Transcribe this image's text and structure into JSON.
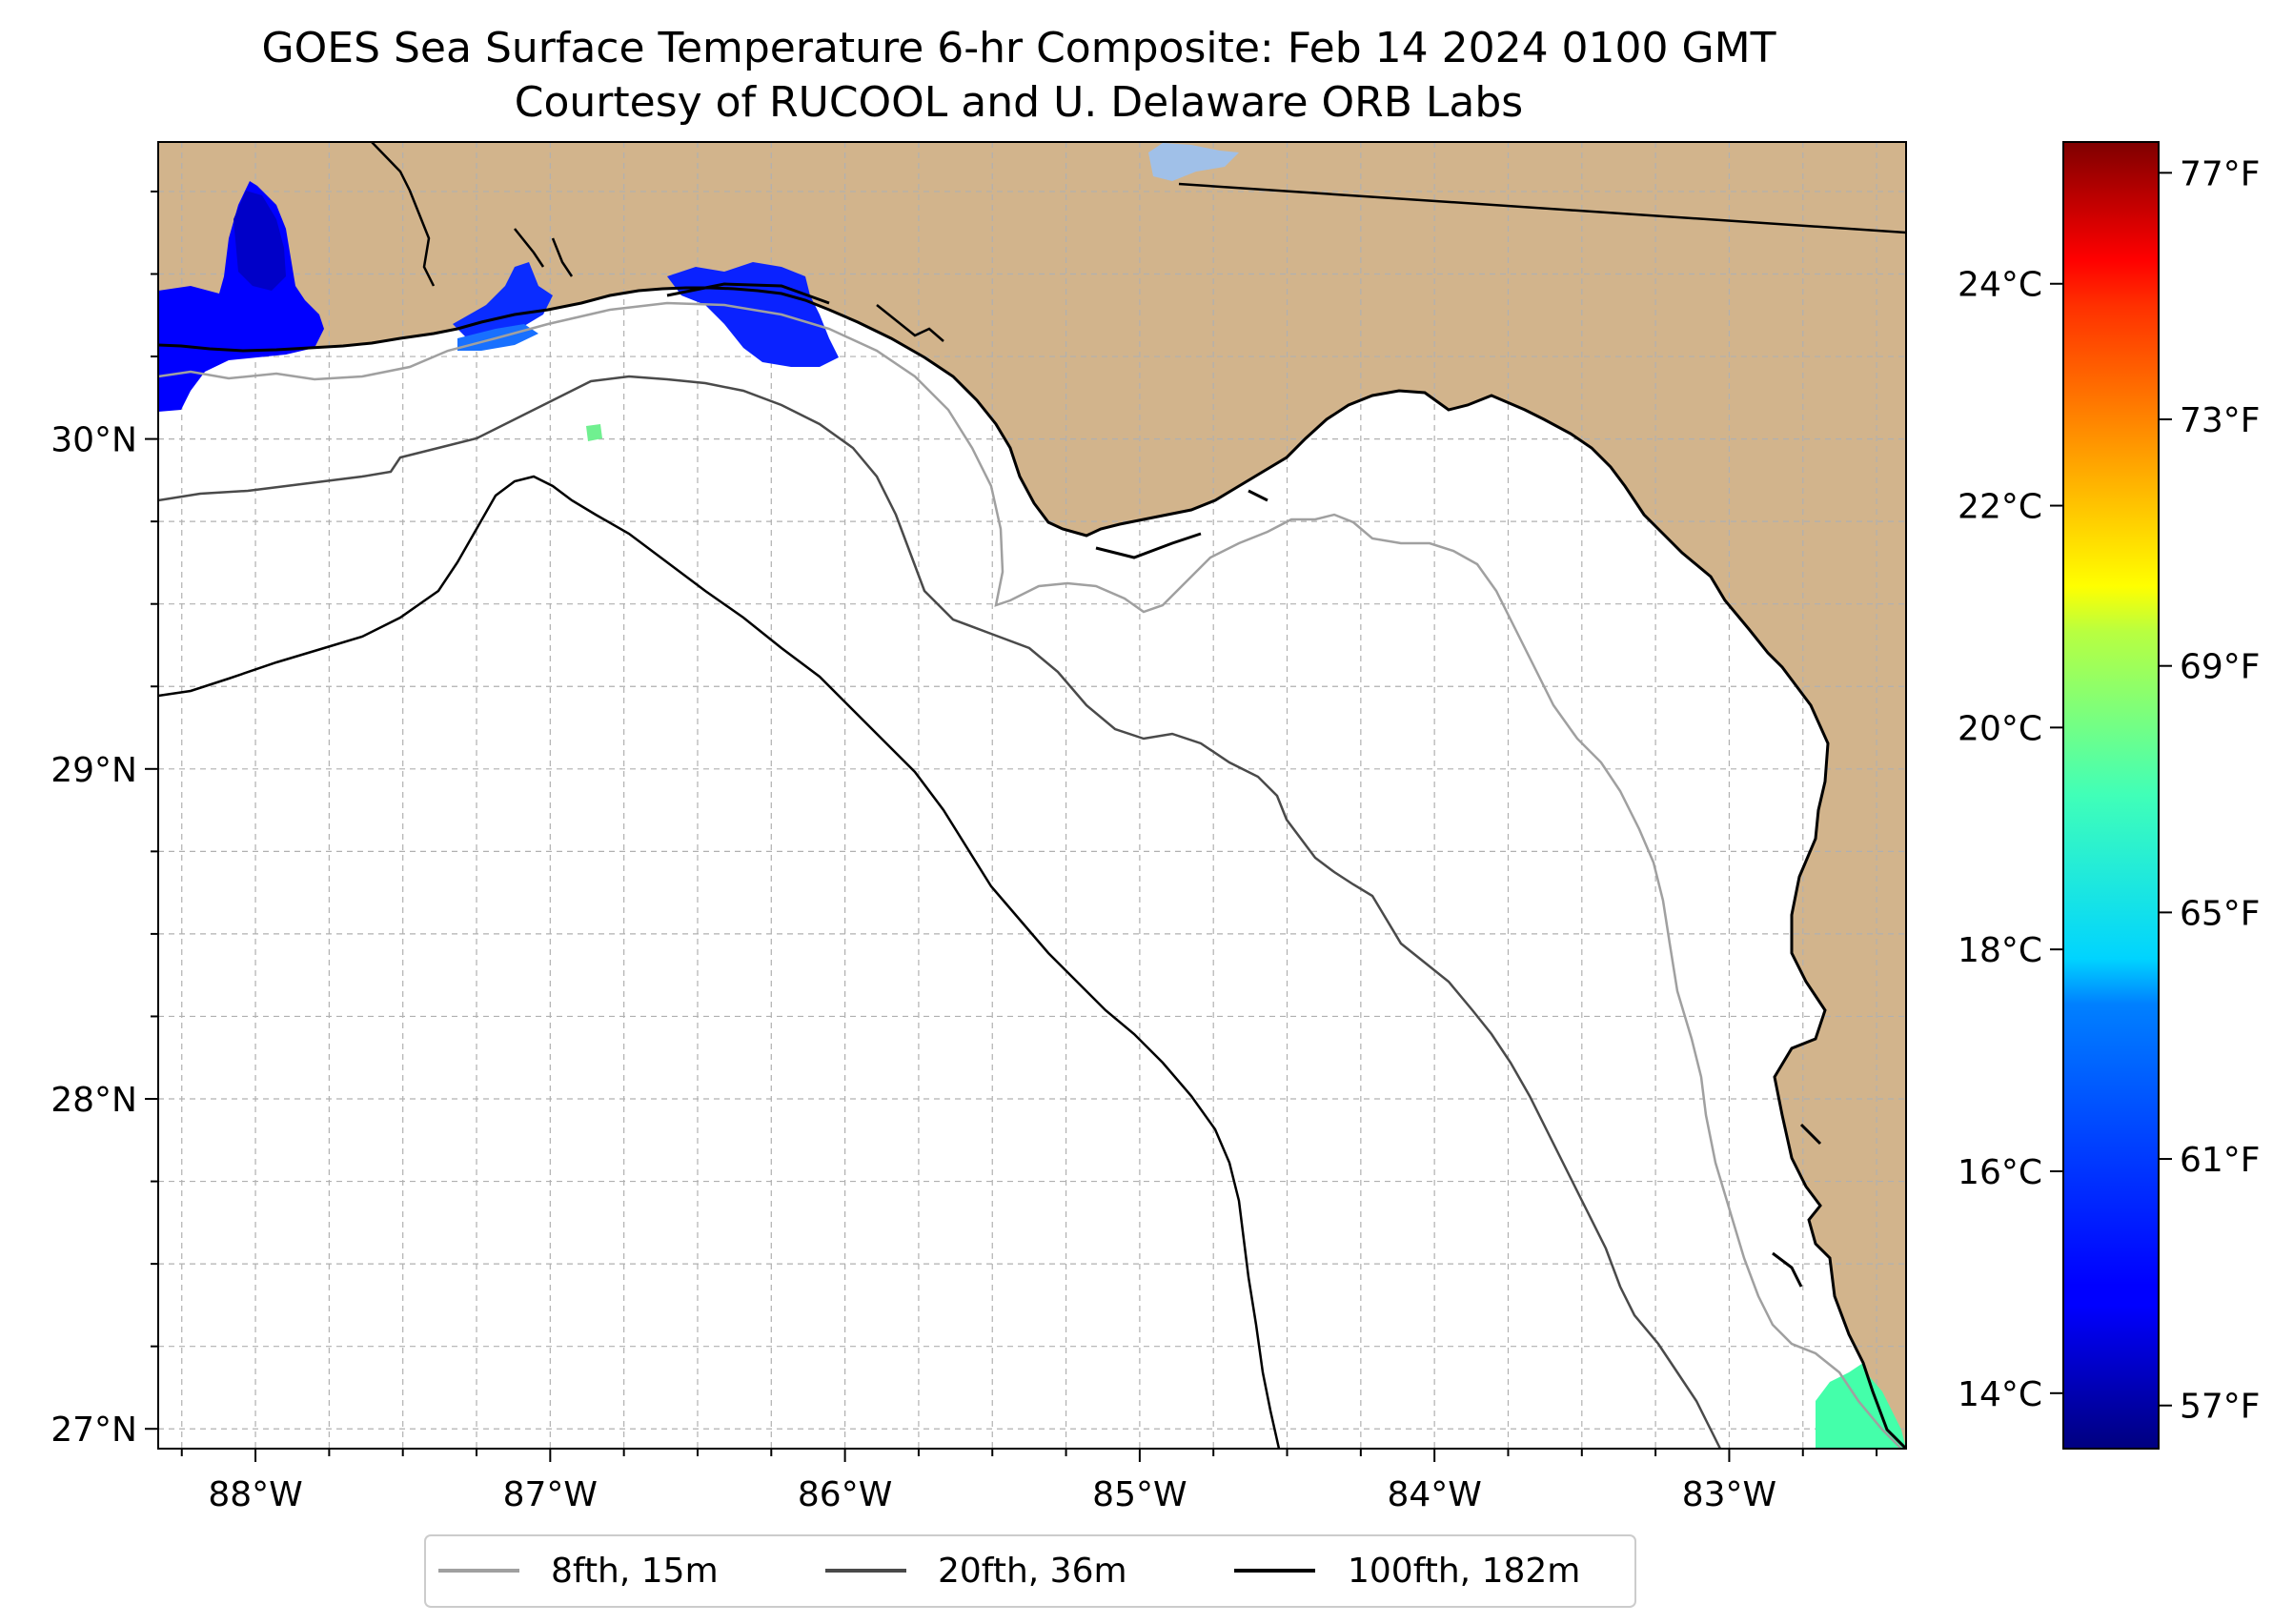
{
  "title": {
    "line1": "GOES Sea Surface Temperature 6-hr Composite: Feb 14 2024 0100 GMT",
    "line2": "Courtesy of RUCOOL and U. Delaware ORB Labs"
  },
  "map": {
    "lon_range": [
      -88.33,
      -82.4
    ],
    "lat_range": [
      26.94,
      30.9
    ],
    "x_ticks": [
      {
        "value": -88,
        "label": "88°W"
      },
      {
        "value": -87,
        "label": "87°W"
      },
      {
        "value": -86,
        "label": "86°W"
      },
      {
        "value": -85,
        "label": "85°W"
      },
      {
        "value": -84,
        "label": "84°W"
      },
      {
        "value": -83,
        "label": "83°W"
      }
    ],
    "y_ticks": [
      {
        "value": 30,
        "label": "30°N"
      },
      {
        "value": 29,
        "label": "29°N"
      },
      {
        "value": 28,
        "label": "28°N"
      },
      {
        "value": 27,
        "label": "27°N"
      }
    ],
    "gridlines": true,
    "colors": {
      "land": "#d2b48c",
      "ocean": "#ffffff",
      "coastline": "#000000",
      "grid": "#b0b0b0",
      "isobath_15m": "#a0a0a0",
      "isobath_36m": "#4a4a4a",
      "isobath_182m": "#000000"
    }
  },
  "colorbar": {
    "colormap": "jet",
    "celsius_ticks": [
      {
        "value": 14,
        "label": "14°C"
      },
      {
        "value": 16,
        "label": "16°C"
      },
      {
        "value": 18,
        "label": "18°C"
      },
      {
        "value": 20,
        "label": "20°C"
      },
      {
        "value": 22,
        "label": "22°C"
      },
      {
        "value": 24,
        "label": "24°C"
      }
    ],
    "fahrenheit_ticks": [
      {
        "value": 57,
        "label": "57°F"
      },
      {
        "value": 61,
        "label": "61°F"
      },
      {
        "value": 65,
        "label": "65°F"
      },
      {
        "value": 69,
        "label": "69°F"
      },
      {
        "value": 73,
        "label": "73°F"
      },
      {
        "value": 77,
        "label": "77°F"
      }
    ],
    "range_f": [
      56.3,
      77.5
    ]
  },
  "legend": {
    "placement": "bottom-center",
    "entries": [
      {
        "label": "8fth, 15m",
        "color": "#a0a0a0"
      },
      {
        "label": "20fth, 36m",
        "color": "#4a4a4a"
      },
      {
        "label": "100fth, 182m",
        "color": "#000000"
      }
    ]
  }
}
